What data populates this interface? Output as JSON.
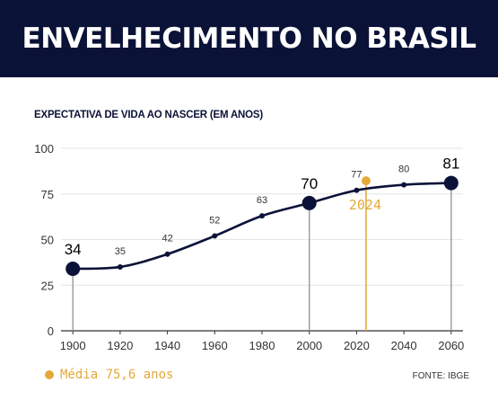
{
  "header": {
    "title": "ENVELHECIMENTO NO BRASIL"
  },
  "chart_data": {
    "type": "line",
    "title": "EXPECTATIVA DE VIDA AO NASCER (EM ANOS)",
    "x": [
      1900,
      1920,
      1940,
      1960,
      1980,
      2000,
      2020,
      2040,
      2060
    ],
    "series": [
      {
        "values": [
          34,
          35,
          42,
          52,
          63,
          70,
          77,
          80,
          81
        ]
      }
    ],
    "highlight_points": [
      1900,
      2000,
      2060
    ],
    "marker": {
      "x": 2024,
      "y": 82.2,
      "label": "2024"
    },
    "xticks": [
      1900,
      1920,
      1940,
      1960,
      1980,
      2000,
      2020,
      2040,
      2060
    ],
    "yticks": [
      0,
      25,
      50,
      75,
      100
    ],
    "xlim": [
      1895,
      2065
    ],
    "ylim": [
      0,
      100
    ],
    "grid": true,
    "colors": {
      "line": "#0b1238",
      "accent": "#e4a93a",
      "drop": "#999999",
      "grid": "#e6e6e6"
    }
  },
  "legend": {
    "label": "Média 75,6 anos"
  },
  "source": "FONTE: IBGE"
}
